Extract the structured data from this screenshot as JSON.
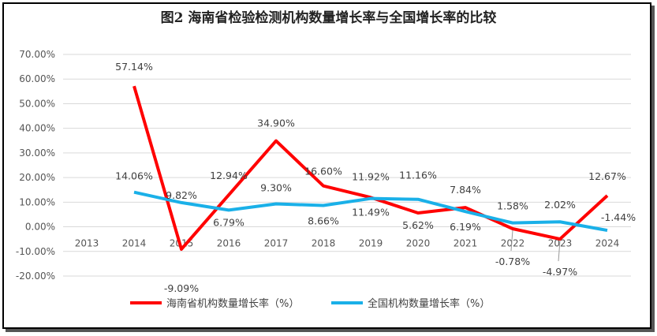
{
  "chart_data": {
    "type": "line",
    "title": "图2 海南省检验检测机构数量增长率与全国增长率的比较",
    "categories": [
      "2013",
      "2014",
      "2015",
      "2016",
      "2017",
      "2018",
      "2019",
      "2020",
      "2021",
      "2022",
      "2023",
      "2024"
    ],
    "ylim": [
      -20,
      70
    ],
    "y_ticks": [
      "70.00%",
      "60.00%",
      "50.00%",
      "40.00%",
      "30.00%",
      "20.00%",
      "10.00%",
      "0.00%",
      "-10.00%",
      "-20.00%"
    ],
    "grid": true,
    "legend": "bottom",
    "series": [
      {
        "name": "海南省机构数量增长率（%）",
        "color": "#ff0000",
        "values": [
          null,
          57.14,
          -9.09,
          12.94,
          34.9,
          16.6,
          11.92,
          5.62,
          7.84,
          -0.78,
          -4.97,
          12.67
        ],
        "labels": [
          "",
          "57.14%",
          "-9.09%",
          "12.94%",
          "34.90%",
          "16.60%",
          "11.92%",
          "5.62%",
          "7.84%",
          "-0.78%",
          "-4.97%",
          "12.67%"
        ]
      },
      {
        "name": "全国机构数量增长率（%）",
        "color": "#1ab0e8",
        "values": [
          null,
          14.06,
          9.82,
          6.79,
          9.3,
          8.66,
          11.49,
          11.16,
          6.19,
          1.58,
          2.02,
          -1.44
        ],
        "labels": [
          "",
          "14.06%",
          "9.82%",
          "6.79%",
          "9.30%",
          "8.66%",
          "11.49%",
          "11.16%",
          "6.19%",
          "1.58%",
          "2.02%",
          "-1.44%"
        ]
      }
    ]
  }
}
